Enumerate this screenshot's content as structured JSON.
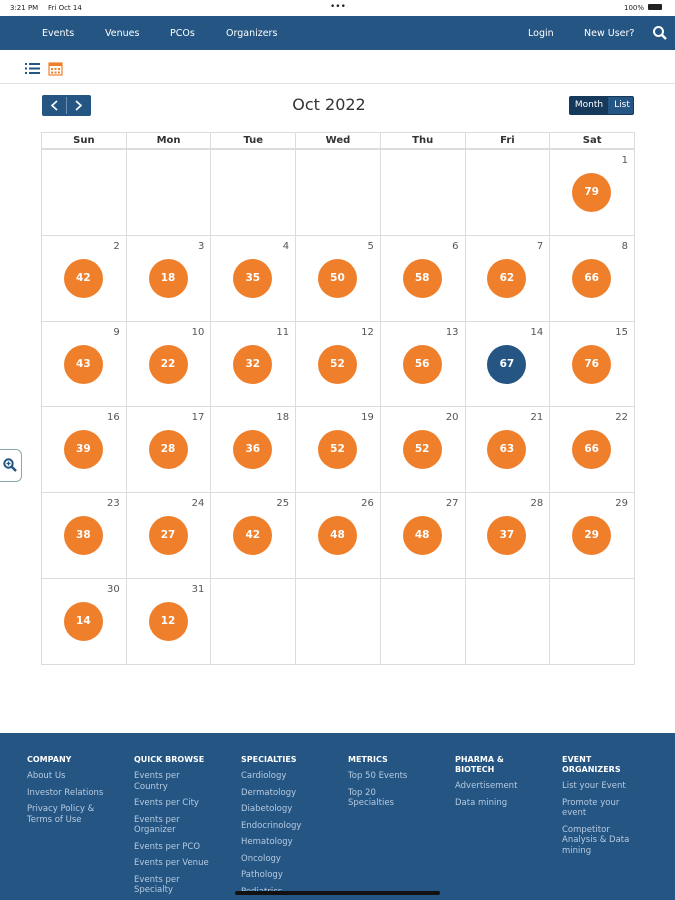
{
  "status_bar": {
    "time": "3:21 PM",
    "date": "Fri Oct 14",
    "battery": "100%"
  },
  "nav": {
    "links": [
      "Events",
      "Venues",
      "PCOs",
      "Organizers"
    ],
    "login": "Login",
    "signup": "New User?"
  },
  "calendar": {
    "title": "Oct 2022",
    "views": [
      "Month",
      "List"
    ],
    "weekdays": [
      "Sun",
      "Mon",
      "Tue",
      "Wed",
      "Thu",
      "Fri",
      "Sat"
    ],
    "weeks": [
      [
        null,
        null,
        null,
        null,
        null,
        null,
        {
          "day": 1,
          "count": 79
        }
      ],
      [
        {
          "day": 2,
          "count": 42
        },
        {
          "day": 3,
          "count": 18
        },
        {
          "day": 4,
          "count": 35
        },
        {
          "day": 5,
          "count": 50
        },
        {
          "day": 6,
          "count": 58
        },
        {
          "day": 7,
          "count": 62
        },
        {
          "day": 8,
          "count": 66
        }
      ],
      [
        {
          "day": 9,
          "count": 43
        },
        {
          "day": 10,
          "count": 22
        },
        {
          "day": 11,
          "count": 32
        },
        {
          "day": 12,
          "count": 52
        },
        {
          "day": 13,
          "count": 56
        },
        {
          "day": 14,
          "count": 67,
          "today": true
        },
        {
          "day": 15,
          "count": 76
        }
      ],
      [
        {
          "day": 16,
          "count": 39
        },
        {
          "day": 17,
          "count": 28
        },
        {
          "day": 18,
          "count": 36
        },
        {
          "day": 19,
          "count": 52
        },
        {
          "day": 20,
          "count": 52
        },
        {
          "day": 21,
          "count": 63
        },
        {
          "day": 22,
          "count": 66
        }
      ],
      [
        {
          "day": 23,
          "count": 38
        },
        {
          "day": 24,
          "count": 27
        },
        {
          "day": 25,
          "count": 42
        },
        {
          "day": 26,
          "count": 48
        },
        {
          "day": 27,
          "count": 48
        },
        {
          "day": 28,
          "count": 37
        },
        {
          "day": 29,
          "count": 29
        }
      ],
      [
        {
          "day": 30,
          "count": 14
        },
        {
          "day": 31,
          "count": 12
        },
        null,
        null,
        null,
        null,
        null
      ]
    ]
  },
  "footer": {
    "columns": [
      {
        "heading": "COMPANY",
        "links": [
          "About Us",
          "Investor Relations",
          "Privacy Policy & Terms of Use"
        ]
      },
      {
        "heading": "QUICK BROWSE",
        "links": [
          "Events per Country",
          "Events per City",
          "Events per Organizer",
          "Events per PCO",
          "Events per Venue",
          "Events per Specialty"
        ]
      },
      {
        "heading": "SPECIALTIES",
        "links": [
          "Cardiology",
          "Dermatology",
          "Diabetology",
          "Endocrinology",
          "Hematology",
          "Oncology",
          "Pathology",
          "Pediatrics"
        ]
      },
      {
        "heading": "METRICS",
        "links": [
          "Top 50 Events",
          "Top 20 Specialties"
        ]
      },
      {
        "heading": "PHARMA & BIOTECH",
        "links": [
          "Advertisement",
          "Data mining"
        ]
      },
      {
        "heading": "EVENT ORGANIZERS",
        "links": [
          "List your Event",
          "Promote your event",
          "Competitor Analysis & Data mining"
        ]
      }
    ]
  }
}
